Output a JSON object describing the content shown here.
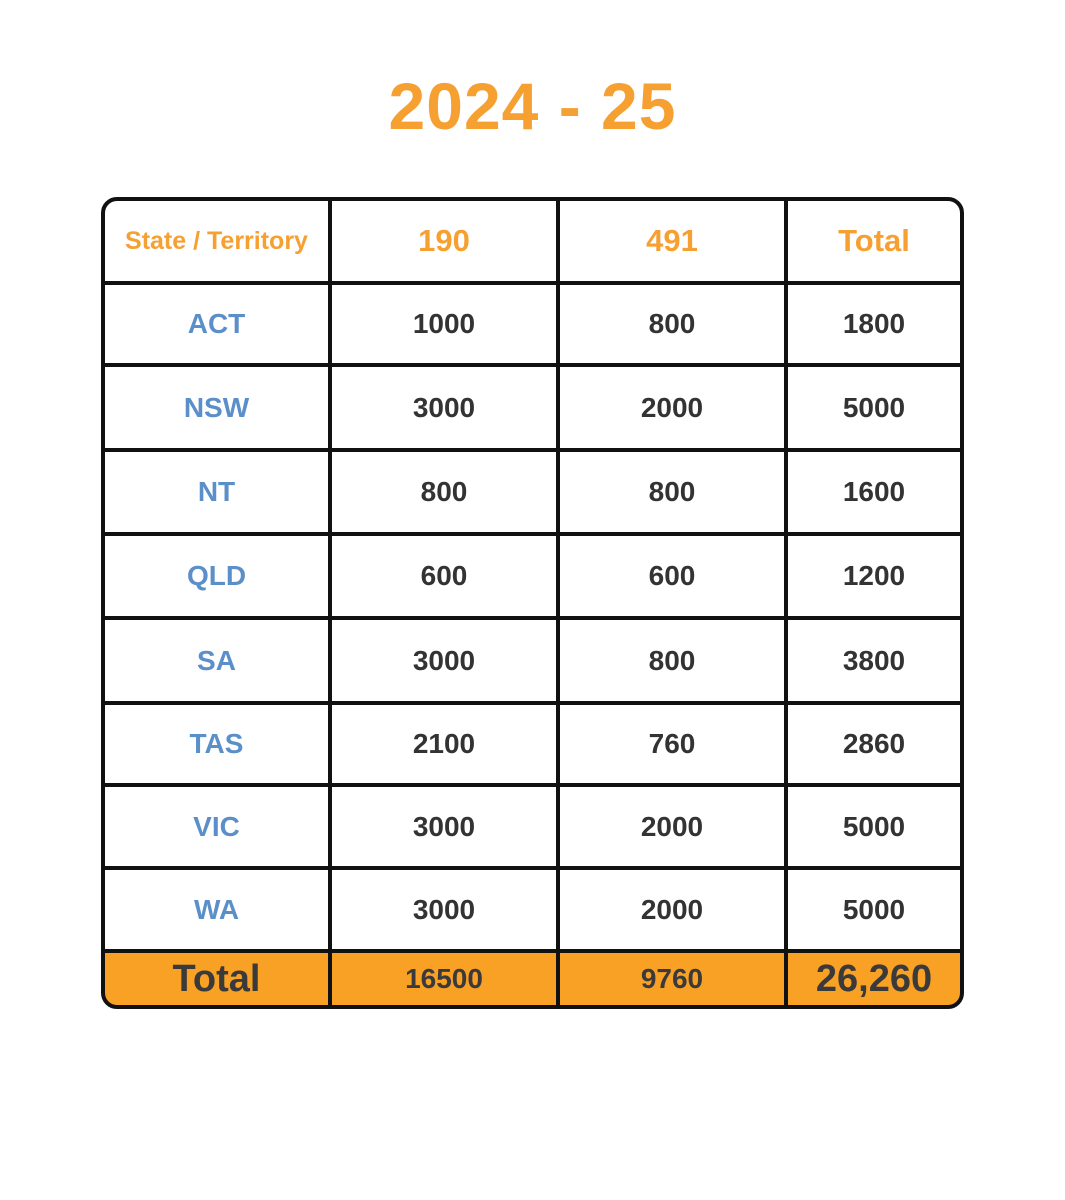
{
  "title": "2024 - 25",
  "table": {
    "header": [
      "State / Territory",
      "190",
      "491",
      "Total"
    ],
    "rows": [
      [
        "ACT",
        "1000",
        "800",
        "1800"
      ],
      [
        "NSW",
        "3000",
        "2000",
        "5000"
      ],
      [
        "NT",
        "800",
        "800",
        "1600"
      ],
      [
        "QLD",
        "600",
        "600",
        "1200"
      ],
      [
        "SA",
        "3000",
        "800",
        "3800"
      ],
      [
        "TAS",
        "2100",
        "760",
        "2860"
      ],
      [
        "VIC",
        "3000",
        "2000",
        "5000"
      ],
      [
        "WA",
        "3000",
        "2000",
        "5000"
      ]
    ],
    "total": [
      "Total",
      "16500",
      "9760",
      "26,260"
    ]
  }
}
